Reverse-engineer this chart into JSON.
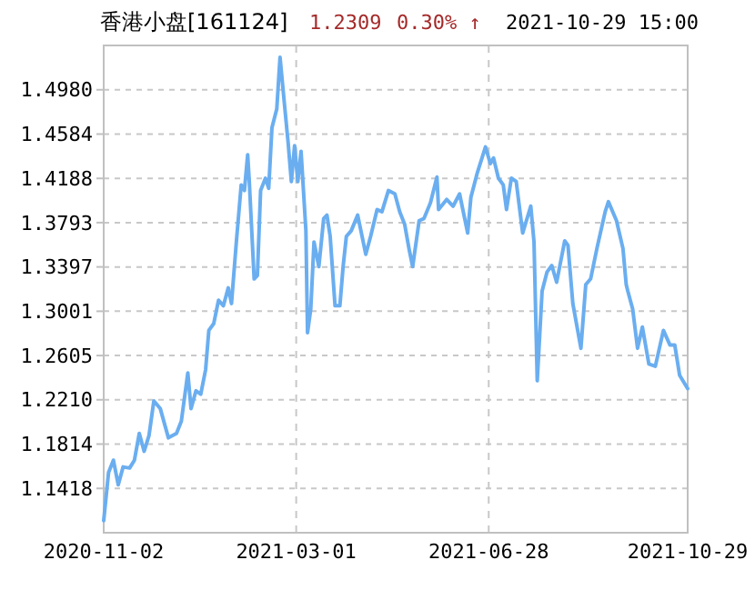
{
  "chart_data": {
    "type": "line",
    "title": "香港小盘[161124]",
    "annotations": [
      "1.2309",
      "0.30% ↑",
      "2021-10-29 15:00"
    ],
    "x": [
      "2020-11-02",
      "2020-11-05",
      "2020-11-08",
      "2020-11-11",
      "2020-11-14",
      "2020-11-18",
      "2020-11-21",
      "2020-11-24",
      "2020-11-27",
      "2020-11-30",
      "2020-12-03",
      "2020-12-07",
      "2020-12-12",
      "2020-12-17",
      "2020-12-20",
      "2020-12-24",
      "2020-12-26",
      "2020-12-29",
      "2021-01-01",
      "2021-01-04",
      "2021-01-06",
      "2021-01-09",
      "2021-01-12",
      "2021-01-15",
      "2021-01-18",
      "2021-01-20",
      "2021-01-23",
      "2021-01-26",
      "2021-01-28",
      "2021-01-30",
      "2021-01-31",
      "2021-02-03",
      "2021-02-05",
      "2021-02-07",
      "2021-02-10",
      "2021-02-12",
      "2021-02-14",
      "2021-02-17",
      "2021-02-19",
      "2021-02-22",
      "2021-02-24",
      "2021-02-26",
      "2021-02-28",
      "2021-03-02",
      "2021-03-04",
      "2021-03-07",
      "2021-03-08",
      "2021-03-10",
      "2021-03-12",
      "2021-03-15",
      "2021-03-18",
      "2021-03-20",
      "2021-03-22",
      "2021-03-25",
      "2021-03-28",
      "2021-03-30",
      "2021-04-01",
      "2021-04-04",
      "2021-04-08",
      "2021-04-13",
      "2021-04-16",
      "2021-04-20",
      "2021-04-23",
      "2021-04-27",
      "2021-05-01",
      "2021-05-04",
      "2021-05-07",
      "2021-05-10",
      "2021-05-12",
      "2021-05-16",
      "2021-05-19",
      "2021-05-23",
      "2021-05-27",
      "2021-05-28",
      "2021-06-02",
      "2021-06-06",
      "2021-06-10",
      "2021-06-15",
      "2021-06-17",
      "2021-06-21",
      "2021-06-26",
      "2021-06-29",
      "2021-07-01",
      "2021-07-04",
      "2021-07-07",
      "2021-07-09",
      "2021-07-12",
      "2021-07-15",
      "2021-07-19",
      "2021-07-24",
      "2021-07-26",
      "2021-07-28",
      "2021-07-31",
      "2021-08-03",
      "2021-08-06",
      "2021-08-09",
      "2021-08-14",
      "2021-08-16",
      "2021-08-19",
      "2021-08-24",
      "2021-08-27",
      "2021-08-30",
      "2021-09-03",
      "2021-09-08",
      "2021-09-10",
      "2021-09-15",
      "2021-09-19",
      "2021-09-21",
      "2021-09-22",
      "2021-09-25",
      "2021-09-28",
      "2021-10-01",
      "2021-10-05",
      "2021-10-09",
      "2021-10-14",
      "2021-10-18",
      "2021-10-21",
      "2021-10-24",
      "2021-10-29"
    ],
    "series": [
      {
        "color": "#6aaef0",
        "values": [
          1.113,
          1.156,
          1.167,
          1.145,
          1.161,
          1.16,
          1.167,
          1.191,
          1.175,
          1.189,
          1.22,
          1.213,
          1.187,
          1.191,
          1.202,
          1.245,
          1.213,
          1.229,
          1.226,
          1.248,
          1.283,
          1.289,
          1.31,
          1.305,
          1.321,
          1.307,
          1.362,
          1.413,
          1.408,
          1.44,
          1.416,
          1.329,
          1.332,
          1.408,
          1.419,
          1.41,
          1.464,
          1.481,
          1.527,
          1.481,
          1.451,
          1.416,
          1.448,
          1.416,
          1.443,
          1.372,
          1.281,
          1.302,
          1.362,
          1.34,
          1.383,
          1.386,
          1.367,
          1.305,
          1.305,
          1.34,
          1.367,
          1.372,
          1.386,
          1.351,
          1.367,
          1.391,
          1.389,
          1.408,
          1.405,
          1.389,
          1.378,
          1.354,
          1.34,
          1.381,
          1.383,
          1.397,
          1.42,
          1.391,
          1.4,
          1.394,
          1.405,
          1.37,
          1.402,
          1.424,
          1.447,
          1.432,
          1.437,
          1.419,
          1.413,
          1.391,
          1.419,
          1.416,
          1.37,
          1.394,
          1.362,
          1.238,
          1.318,
          1.335,
          1.341,
          1.326,
          1.363,
          1.359,
          1.307,
          1.267,
          1.324,
          1.329,
          1.357,
          1.389,
          1.398,
          1.381,
          1.356,
          1.324,
          1.318,
          1.302,
          1.267,
          1.286,
          1.253,
          1.251,
          1.283,
          1.27,
          1.27,
          1.243,
          1.231
        ]
      }
    ],
    "xlim": [
      "2020-11-02",
      "2021-10-29"
    ],
    "xticks": [
      "2020-11-02",
      "2021-03-01",
      "2021-06-28",
      "2021-10-29"
    ],
    "ylim": [
      1.1022,
      1.5376
    ],
    "yticks": [
      {
        "value": 1.1418,
        "label": "1.1418"
      },
      {
        "value": 1.1814,
        "label": "1.1814"
      },
      {
        "value": 1.221,
        "label": "1.2210"
      },
      {
        "value": 1.2605,
        "label": "1.2605"
      },
      {
        "value": 1.3001,
        "label": "1.3001"
      },
      {
        "value": 1.3397,
        "label": "1.3397"
      },
      {
        "value": 1.3793,
        "label": "1.3793"
      },
      {
        "value": 1.4188,
        "label": "1.4188"
      },
      {
        "value": 1.4584,
        "label": "1.4584"
      },
      {
        "value": 1.498,
        "label": "1.4980"
      }
    ],
    "grid": true,
    "line_style": "solid",
    "marker": "none"
  }
}
